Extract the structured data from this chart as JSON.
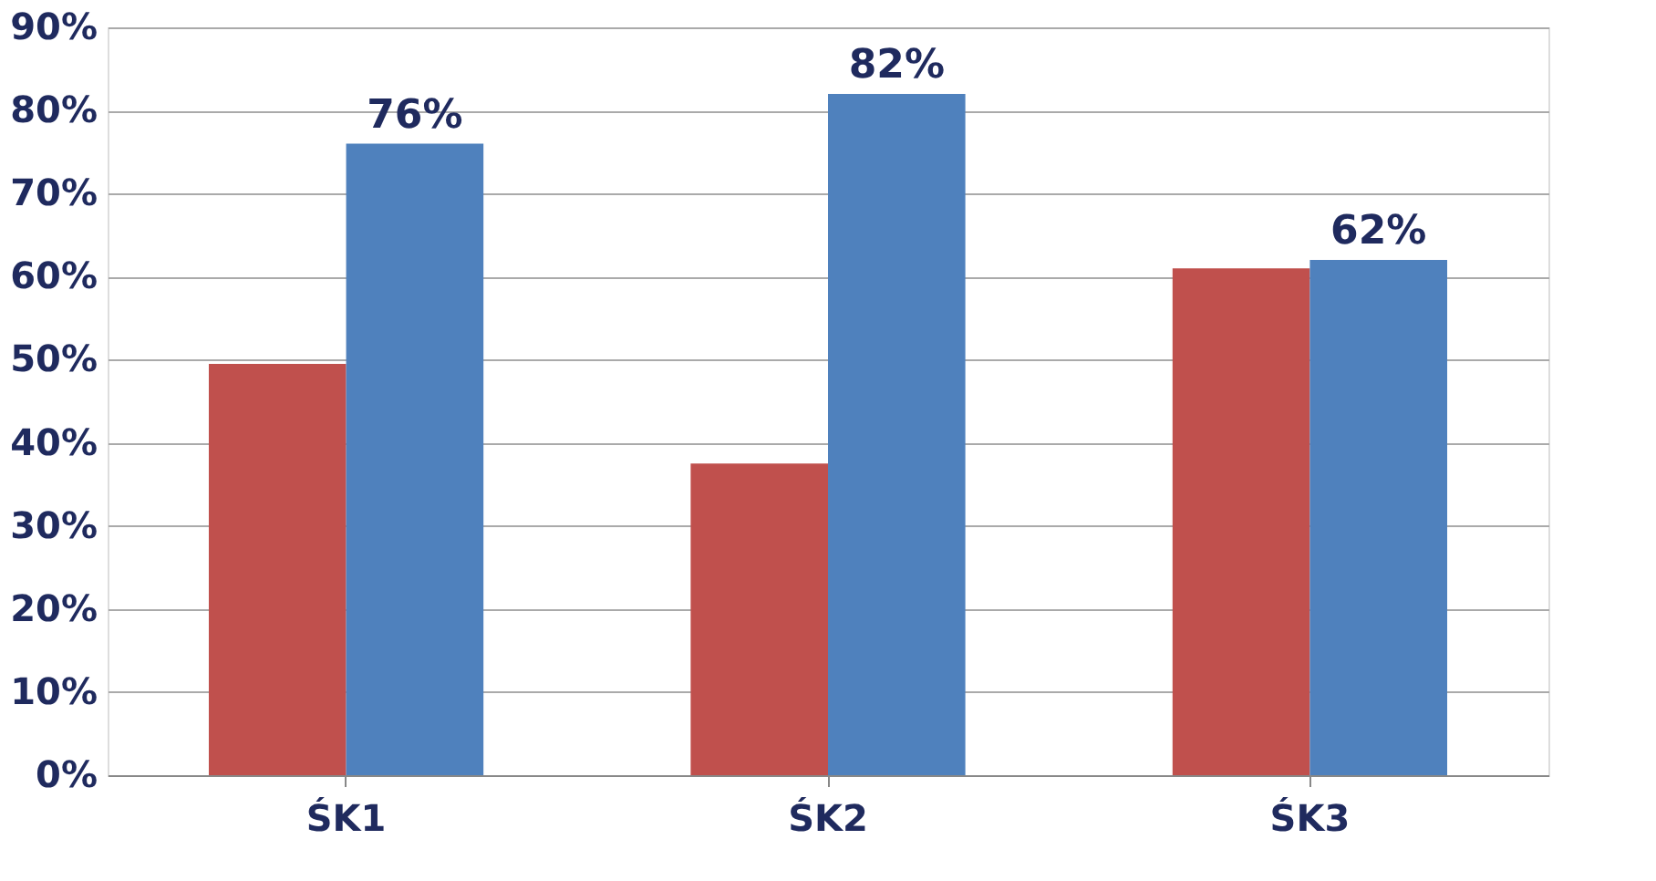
{
  "chart_data": {
    "type": "bar",
    "categories": [
      "ŚK1",
      "ŚK2",
      "ŚK3"
    ],
    "series": [
      {
        "color": "#c0504d",
        "values": [
          49.5,
          37.5,
          61
        ]
      },
      {
        "color": "#4f81bd",
        "values": [
          76,
          82,
          62
        ],
        "value_labels": [
          "76%",
          "82%",
          "62%"
        ]
      }
    ],
    "ylim": [
      0,
      90
    ],
    "yticks": [
      {
        "value": 0,
        "label": "0%"
      },
      {
        "value": 10,
        "label": "10%"
      },
      {
        "value": 20,
        "label": "20%"
      },
      {
        "value": 30,
        "label": "30%"
      },
      {
        "value": 40,
        "label": "40%"
      },
      {
        "value": 50,
        "label": "50%"
      },
      {
        "value": 60,
        "label": "60%"
      },
      {
        "value": 70,
        "label": "70%"
      },
      {
        "value": 80,
        "label": "80%"
      },
      {
        "value": 90,
        "label": "90%"
      }
    ],
    "grid": "y",
    "legend": false
  }
}
